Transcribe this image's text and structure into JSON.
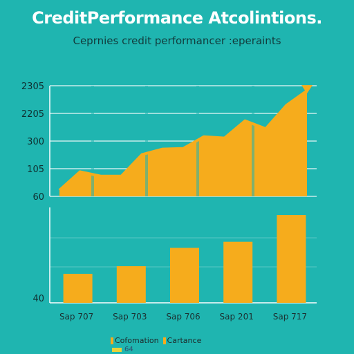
{
  "header": {
    "title": "CreditPerformance Atcolintions.",
    "subtitle": "Ceprnies credit performancer :eperaints"
  },
  "colors": {
    "background": "#1fb5b0",
    "series": "#f6ac1c",
    "grid": "#ffffff"
  },
  "legend": {
    "items": [
      {
        "label": "Cofomation",
        "color": "#f6ac1c"
      },
      {
        "label": "Cartance",
        "color": "#f6ac1c"
      }
    ],
    "sub_label": "64"
  },
  "chart_data": [
    {
      "type": "area",
      "y_tick_labels": [
        "2305",
        "2205",
        "300",
        "105",
        "60"
      ],
      "y": [
        10,
        40,
        33,
        33,
        68,
        77,
        78,
        97,
        95,
        123,
        110,
        148,
        172
      ],
      "ylim": [
        0,
        180
      ],
      "grid": true
    },
    {
      "type": "bar",
      "categories": [
        "Sap 707",
        "Sap 703",
        "Sap 706",
        "Sap 201",
        "Sap 717"
      ],
      "values": [
        38,
        48,
        72,
        80,
        115
      ],
      "y_tick_labels": [
        "40"
      ],
      "ylim": [
        0,
        125
      ],
      "grid": true
    }
  ]
}
